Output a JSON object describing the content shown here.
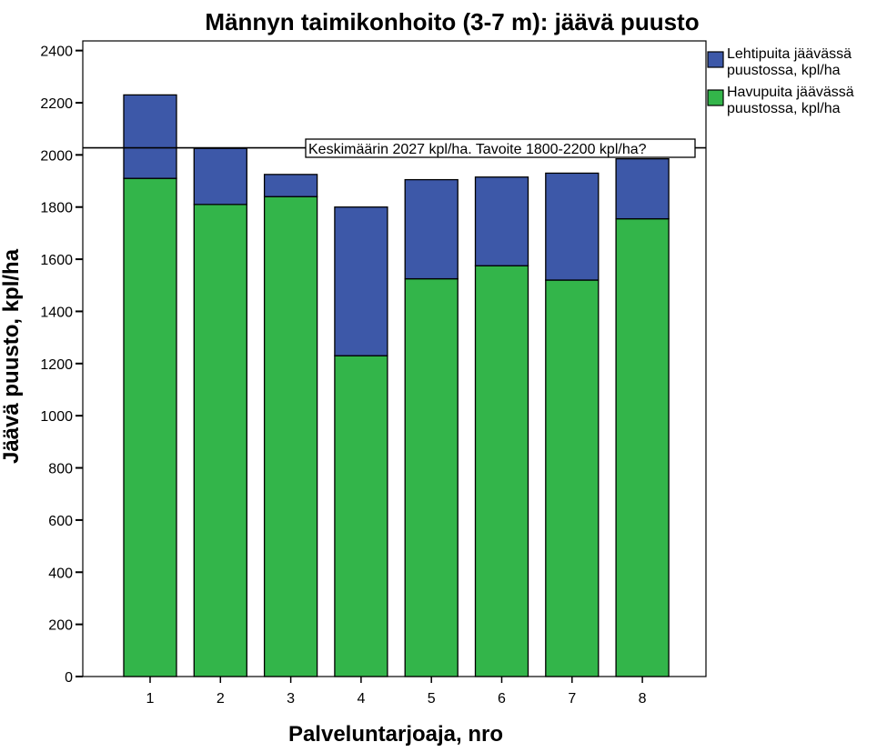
{
  "chart_data": {
    "type": "bar",
    "stacked": true,
    "title": "Männyn taimikonhoito (3-7 m): jäävä puusto",
    "xlabel": "Palveluntarjoaja, nro",
    "ylabel": "Jäävä puusto, kpl/ha",
    "categories": [
      "1",
      "2",
      "3",
      "4",
      "5",
      "6",
      "7",
      "8"
    ],
    "series": [
      {
        "name": "Havupuita jäävässä puustossa, kpl/ha",
        "color": "#33b54a",
        "values": [
          1910,
          1810,
          1840,
          1230,
          1525,
          1575,
          1520,
          1755
        ]
      },
      {
        "name": "Lehtipuita jäävässä puustossa, kpl/ha",
        "color": "#3d58a8",
        "values": [
          320,
          215,
          85,
          570,
          380,
          340,
          410,
          230
        ]
      }
    ],
    "legend_order": [
      1,
      0
    ],
    "legend_labels": [
      [
        "Lehtipuita jäävässä",
        "puustossa, kpl/ha"
      ],
      [
        "Havupuita jäävässä",
        "puustossa, kpl/ha"
      ]
    ],
    "legend_position": "top-right, outside plot",
    "ylim": [
      0,
      2400
    ],
    "yticks": [
      0,
      200,
      400,
      600,
      800,
      1000,
      1200,
      1400,
      1600,
      1800,
      2000,
      2200,
      2400
    ],
    "reference_line": {
      "value": 2027
    },
    "annotation": "Keskimäärin 2027 kpl/ha. Tavoite 1800-2200 kpl/ha?",
    "grid": false
  }
}
